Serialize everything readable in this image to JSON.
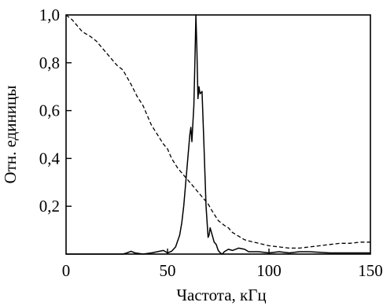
{
  "chart_data": {
    "type": "line",
    "title": "",
    "xlabel": "Частота, кГц",
    "ylabel": "Отн. единицы",
    "xlim": [
      0,
      150
    ],
    "ylim": [
      0,
      1.0
    ],
    "x_ticks": [
      0,
      50,
      100,
      150
    ],
    "x_tick_labels": [
      "0",
      "50",
      "100",
      "150"
    ],
    "y_ticks": [
      0.2,
      0.4,
      0.6,
      0.8,
      1.0
    ],
    "y_tick_labels": [
      "0,2",
      "0,4",
      "0,6",
      "0,8",
      "1,0"
    ],
    "grid": false,
    "legend": "none",
    "series": [
      {
        "style": "solid",
        "color": "#000000",
        "x": [
          0,
          20,
          28,
          30,
          32,
          34,
          38,
          42,
          45,
          48,
          50,
          52,
          54,
          56,
          57,
          58,
          59,
          60,
          61,
          61.5,
          62,
          62.5,
          63,
          63.5,
          64,
          64.5,
          65,
          65.5,
          66,
          67,
          68,
          69,
          70,
          70.5,
          71,
          72,
          73,
          74,
          75,
          76,
          77,
          78,
          80,
          82,
          85,
          88,
          90,
          95,
          100,
          105,
          110,
          115,
          120,
          130,
          140,
          150
        ],
        "y": [
          0,
          0,
          0,
          0.005,
          0.012,
          0.005,
          0,
          0.005,
          0.01,
          0.015,
          0.005,
          0.012,
          0.03,
          0.08,
          0.13,
          0.2,
          0.3,
          0.4,
          0.5,
          0.53,
          0.47,
          0.55,
          0.62,
          0.8,
          1.0,
          0.85,
          0.65,
          0.7,
          0.67,
          0.68,
          0.45,
          0.2,
          0.07,
          0.08,
          0.11,
          0.08,
          0.05,
          0.04,
          0.015,
          0.005,
          0,
          0.01,
          0.02,
          0.015,
          0.025,
          0.02,
          0.01,
          0.01,
          0.005,
          0.01,
          0.005,
          0.01,
          0.01,
          0.005,
          0.005,
          0.005
        ]
      },
      {
        "style": "dashed",
        "color": "#000000",
        "x": [
          0,
          3,
          6,
          8,
          10,
          12,
          15,
          18,
          20,
          22,
          25,
          28,
          30,
          32,
          35,
          38,
          40,
          42,
          45,
          48,
          50,
          52,
          55,
          58,
          60,
          62,
          65,
          68,
          70,
          72,
          75,
          78,
          80,
          82,
          85,
          88,
          90,
          95,
          100,
          105,
          110,
          115,
          120,
          125,
          130,
          135,
          140,
          145,
          150
        ],
        "y": [
          1.0,
          0.98,
          0.95,
          0.93,
          0.92,
          0.91,
          0.89,
          0.86,
          0.84,
          0.82,
          0.79,
          0.77,
          0.74,
          0.71,
          0.66,
          0.62,
          0.58,
          0.54,
          0.5,
          0.46,
          0.44,
          0.4,
          0.36,
          0.33,
          0.31,
          0.29,
          0.26,
          0.23,
          0.21,
          0.18,
          0.14,
          0.12,
          0.11,
          0.09,
          0.075,
          0.06,
          0.055,
          0.045,
          0.035,
          0.03,
          0.025,
          0.025,
          0.03,
          0.035,
          0.04,
          0.045,
          0.045,
          0.05,
          0.05
        ]
      }
    ]
  }
}
